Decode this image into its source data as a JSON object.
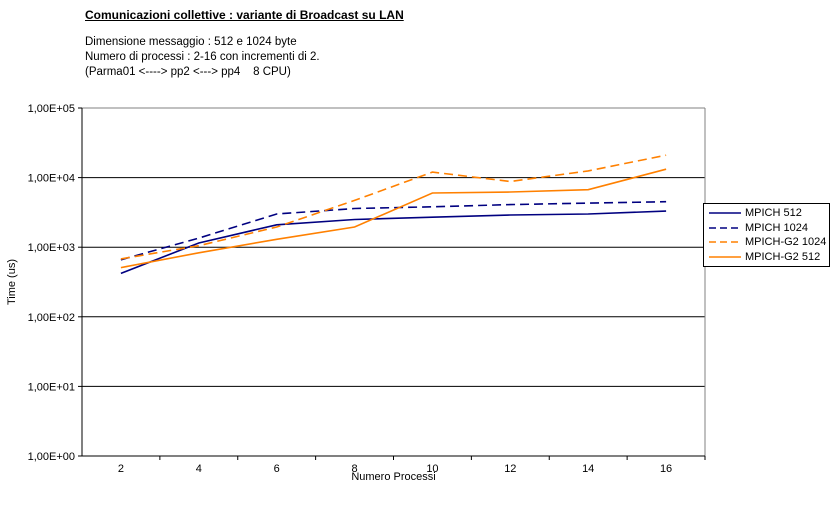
{
  "header": {
    "title": "Comunicazioni collettive : variante di Broadcast su LAN",
    "subtitle_lines": [
      "Dimensione messaggio : 512 e 1024 byte",
      "Numero di processi : 2-16 con incrementi di 2.",
      "(Parma01 <----> pp2 <---> pp4    8 CPU)"
    ]
  },
  "chart_data": {
    "type": "line",
    "x": [
      2,
      4,
      6,
      8,
      10,
      12,
      14,
      16
    ],
    "xlabel": "Numero Processi",
    "ylabel": "Time (us)",
    "y_scale": "log",
    "ylim": [
      1,
      100000
    ],
    "y_tick_labels": [
      "1,00E+00",
      "1,00E+01",
      "1,00E+02",
      "1,00E+03",
      "1,00E+04",
      "1,00E+05"
    ],
    "grid": true,
    "legend_position": "right",
    "series": [
      {
        "name": "MPICH 512",
        "color": "#000080",
        "dash": "solid",
        "values": [
          420,
          1150,
          2100,
          2500,
          2700,
          2900,
          3000,
          3300
        ]
      },
      {
        "name": "MPICH 1024",
        "color": "#000080",
        "dash": "dashed",
        "values": [
          660,
          1350,
          3000,
          3600,
          3800,
          4100,
          4300,
          4500
        ]
      },
      {
        "name": "MPICH-G2 1024",
        "color": "#FF8000",
        "dash": "dashed",
        "values": [
          680,
          1050,
          1950,
          4700,
          12000,
          8800,
          12500,
          21000
        ]
      },
      {
        "name": "MPICH-G2 512",
        "color": "#FF8000",
        "dash": "solid",
        "values": [
          510,
          830,
          1300,
          1950,
          6000,
          6200,
          6700,
          13200
        ]
      }
    ],
    "colors": {
      "axis": "#000000",
      "plot_border": "#808080",
      "navy": "#000080",
      "orange": "#FF8000"
    }
  }
}
